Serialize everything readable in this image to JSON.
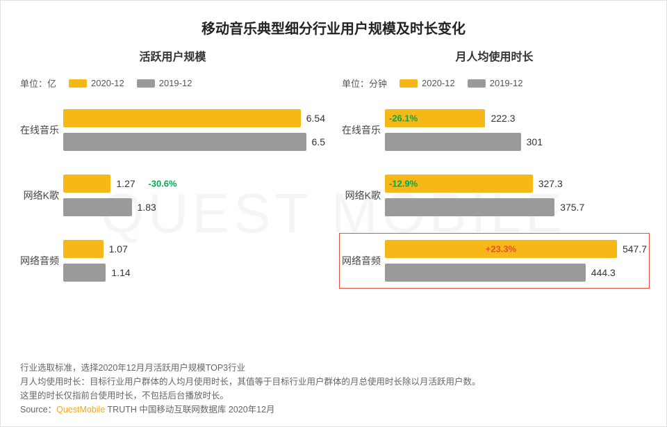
{
  "watermark": "QUEST MOBILE",
  "title": "移动音乐典型细分行业用户规模及时长变化",
  "colors": {
    "series_2020": "#f5b816",
    "series_2019": "#9a9a9a",
    "delta_neg": "#00a84f",
    "delta_pos": "#e74c3c",
    "highlight_border": "#e74c3c",
    "text": "#333333",
    "bg": "#ffffff"
  },
  "legend": {
    "series_a": "2020-12",
    "series_b": "2019-12"
  },
  "left": {
    "subtitle": "活跃用户规模",
    "unit_label": "单位：亿",
    "x_max": 7.0,
    "categories": [
      {
        "name": "在线音乐",
        "v2020": 6.54,
        "v2019": 6.5,
        "delta": null
      },
      {
        "name": "网络K歌",
        "v2020": 1.27,
        "v2019": 1.83,
        "delta": "-30.6%",
        "delta_sign": "neg"
      },
      {
        "name": "网络音频",
        "v2020": 1.07,
        "v2019": 1.14,
        "delta": null
      }
    ]
  },
  "right": {
    "subtitle": "月人均使用时长",
    "unit_label": "单位：分钟",
    "x_max": 580,
    "categories": [
      {
        "name": "在线音乐",
        "v2020": 222.3,
        "v2019": 301.0,
        "delta": "-26.1%",
        "delta_sign": "neg"
      },
      {
        "name": "网络K歌",
        "v2020": 327.3,
        "v2019": 375.7,
        "delta": "-12.9%",
        "delta_sign": "neg"
      },
      {
        "name": "网络音频",
        "v2020": 547.7,
        "v2019": 444.3,
        "delta": "+23.3%",
        "delta_sign": "pos",
        "highlight": true
      }
    ]
  },
  "footer": {
    "line1": "行业选取标准，选择2020年12月月活跃用户规模TOP3行业",
    "line2": "月人均使用时长：目标行业用户群体的人均月使用时长，其值等于目标行业用户群体的月总使用时长除以月活跃用户数。",
    "line3": "这里的时长仅指前台使用时长，不包括后台播放时长。",
    "source_prefix": "Source：",
    "source_brand": "QuestMobile",
    "source_rest": " TRUTH 中国移动互联网数据库 2020年12月"
  }
}
